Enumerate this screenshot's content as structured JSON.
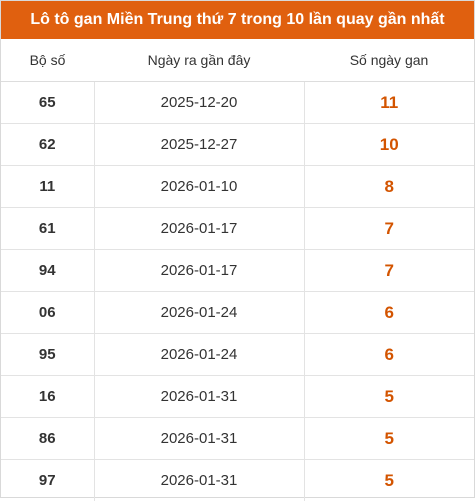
{
  "title": "Lô tô gan Miền Trung thứ 7 trong 10 lần quay gần nhất",
  "colors": {
    "header_bg": "#e0600f",
    "gan_value": "#d35400"
  },
  "columns": [
    "Bộ số",
    "Ngày ra gần đây",
    "Số ngày gan"
  ],
  "rows": [
    {
      "number": "65",
      "date": "2025-12-20",
      "days": "11"
    },
    {
      "number": "62",
      "date": "2025-12-27",
      "days": "10"
    },
    {
      "number": "11",
      "date": "2026-01-10",
      "days": "8"
    },
    {
      "number": "61",
      "date": "2026-01-17",
      "days": "7"
    },
    {
      "number": "94",
      "date": "2026-01-17",
      "days": "7"
    },
    {
      "number": "06",
      "date": "2026-01-24",
      "days": "6"
    },
    {
      "number": "95",
      "date": "2026-01-24",
      "days": "6"
    },
    {
      "number": "16",
      "date": "2026-01-31",
      "days": "5"
    },
    {
      "number": "86",
      "date": "2026-01-31",
      "days": "5"
    },
    {
      "number": "97",
      "date": "2026-01-31",
      "days": "5"
    }
  ]
}
